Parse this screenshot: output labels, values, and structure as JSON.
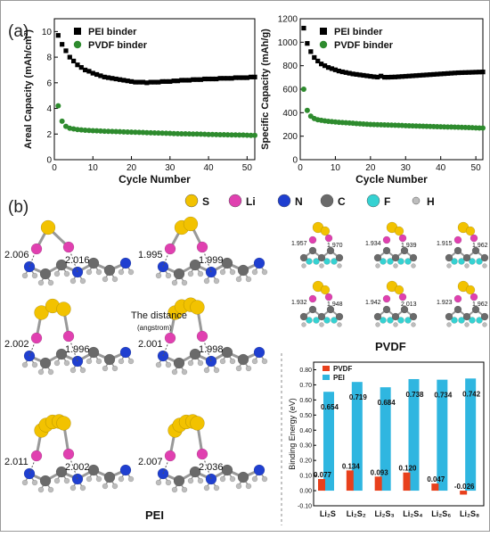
{
  "panel_labels": {
    "a": "(a)",
    "b": "(b)"
  },
  "chart_data": [
    {
      "type": "scatter",
      "title": "",
      "xlabel": "Cycle Number",
      "ylabel": "Areal Capacity (mAh/cm²)",
      "xlim": [
        0,
        52
      ],
      "ylim": [
        0,
        11
      ],
      "xticks": [
        "0",
        "10",
        "20",
        "30",
        "40",
        "50"
      ],
      "yticks": [
        "0",
        "2",
        "4",
        "6",
        "8",
        "10"
      ],
      "legend_position": "top-right",
      "series": [
        {
          "name": "PEI binder",
          "color": "#000000",
          "marker": "square",
          "x": [
            1,
            2,
            3,
            4,
            5,
            6,
            7,
            8,
            9,
            10,
            11,
            12,
            13,
            14,
            15,
            16,
            17,
            18,
            19,
            20,
            21,
            22,
            23,
            24,
            25,
            26,
            27,
            28,
            29,
            30,
            31,
            32,
            33,
            34,
            35,
            36,
            37,
            38,
            39,
            40,
            41,
            42,
            43,
            44,
            45,
            46,
            47,
            48,
            49,
            50,
            51,
            52
          ],
          "y": [
            9.7,
            9.0,
            8.5,
            8.0,
            7.7,
            7.4,
            7.2,
            7.0,
            6.9,
            6.75,
            6.65,
            6.55,
            6.45,
            6.4,
            6.35,
            6.3,
            6.25,
            6.2,
            6.15,
            6.1,
            6.05,
            6.05,
            6.05,
            6.0,
            6.05,
            6.05,
            6.05,
            6.1,
            6.1,
            6.1,
            6.15,
            6.15,
            6.2,
            6.2,
            6.2,
            6.25,
            6.25,
            6.25,
            6.3,
            6.3,
            6.3,
            6.3,
            6.35,
            6.35,
            6.35,
            6.35,
            6.4,
            6.4,
            6.4,
            6.4,
            6.45,
            6.45
          ]
        },
        {
          "name": "PVDF binder",
          "color": "#2e8b2e",
          "marker": "circle",
          "x": [
            1,
            2,
            3,
            4,
            5,
            6,
            7,
            8,
            9,
            10,
            11,
            12,
            13,
            14,
            15,
            16,
            17,
            18,
            19,
            20,
            21,
            22,
            23,
            24,
            25,
            26,
            27,
            28,
            29,
            30,
            31,
            32,
            33,
            34,
            35,
            36,
            37,
            38,
            39,
            40,
            41,
            42,
            43,
            44,
            45,
            46,
            47,
            48,
            49,
            50,
            51,
            52
          ],
          "y": [
            4.2,
            3.0,
            2.6,
            2.45,
            2.4,
            2.35,
            2.32,
            2.3,
            2.28,
            2.26,
            2.25,
            2.24,
            2.22,
            2.21,
            2.2,
            2.19,
            2.18,
            2.17,
            2.16,
            2.15,
            2.14,
            2.13,
            2.12,
            2.11,
            2.1,
            2.09,
            2.08,
            2.07,
            2.06,
            2.05,
            2.04,
            2.03,
            2.02,
            2.02,
            2.01,
            2.0,
            2.0,
            1.99,
            1.98,
            1.97,
            1.97,
            1.96,
            1.95,
            1.95,
            1.94,
            1.93,
            1.93,
            1.92,
            1.92,
            1.91,
            1.9,
            1.9
          ]
        }
      ]
    },
    {
      "type": "scatter",
      "title": "",
      "xlabel": "Cycle Number",
      "ylabel": "Specific Capacity (mAh/g)",
      "xlim": [
        0,
        52
      ],
      "ylim": [
        0,
        1200
      ],
      "xticks": [
        "0",
        "10",
        "20",
        "30",
        "40",
        "50"
      ],
      "yticks": [
        "0",
        "200",
        "400",
        "600",
        "800",
        "1000",
        "1200"
      ],
      "legend_position": "top-right",
      "series": [
        {
          "name": "PEI binder",
          "color": "#000000",
          "marker": "square",
          "x": [
            1,
            2,
            3,
            4,
            5,
            6,
            7,
            8,
            9,
            10,
            11,
            12,
            13,
            14,
            15,
            16,
            17,
            18,
            19,
            20,
            21,
            22,
            23,
            24,
            25,
            26,
            27,
            28,
            29,
            30,
            31,
            32,
            33,
            34,
            35,
            36,
            37,
            38,
            39,
            40,
            41,
            42,
            43,
            44,
            45,
            46,
            47,
            48,
            49,
            50,
            51,
            52
          ],
          "y": [
            1120,
            990,
            920,
            870,
            840,
            815,
            800,
            785,
            775,
            765,
            755,
            748,
            742,
            736,
            730,
            726,
            722,
            718,
            714,
            710,
            706,
            703,
            712,
            702,
            702,
            703,
            704,
            706,
            708,
            710,
            712,
            714,
            716,
            718,
            720,
            722,
            724,
            726,
            728,
            730,
            732,
            734,
            736,
            738,
            740,
            741,
            742,
            743,
            744,
            745,
            746,
            747
          ]
        },
        {
          "name": "PVDF binder",
          "color": "#2e8b2e",
          "marker": "circle",
          "x": [
            1,
            2,
            3,
            4,
            5,
            6,
            7,
            8,
            9,
            10,
            11,
            12,
            13,
            14,
            15,
            16,
            17,
            18,
            19,
            20,
            21,
            22,
            23,
            24,
            25,
            26,
            27,
            28,
            29,
            30,
            31,
            32,
            33,
            34,
            35,
            36,
            37,
            38,
            39,
            40,
            41,
            42,
            43,
            44,
            45,
            46,
            47,
            48,
            49,
            50,
            51,
            52
          ],
          "y": [
            600,
            420,
            370,
            350,
            340,
            335,
            330,
            327,
            324,
            321,
            318,
            316,
            314,
            312,
            310,
            308,
            306,
            304,
            302,
            300,
            299,
            298,
            297,
            296,
            295,
            294,
            293,
            292,
            291,
            290,
            289,
            288,
            287,
            286,
            285,
            284,
            283,
            282,
            281,
            280,
            279,
            278,
            278,
            277,
            276,
            275,
            274,
            273,
            272,
            271,
            270,
            270
          ]
        }
      ]
    },
    {
      "type": "bar",
      "title": "",
      "xlabel": "",
      "ylabel": "Binding Energy (eV)",
      "ylim": [
        -0.1,
        0.85
      ],
      "yticks": [
        "-0.10",
        "0.00",
        "0.10",
        "0.20",
        "0.30",
        "0.40",
        "0.50",
        "0.60",
        "0.70",
        "0.80"
      ],
      "categories": [
        "Li₂S",
        "Li₂S₂",
        "Li₂S₃",
        "Li₂S₄",
        "Li₂S₆",
        "Li₂S₈"
      ],
      "legend_position": "top-left",
      "series": [
        {
          "name": "PVDF",
          "color": "#e8401c",
          "values": [
            0.077,
            0.134,
            0.093,
            0.12,
            0.047,
            -0.026
          ],
          "labels": [
            "0.077",
            "0.134",
            "0.093",
            "0.120",
            "0.047",
            "-0.026"
          ]
        },
        {
          "name": "PEI",
          "color": "#2fb6e0",
          "values": [
            0.654,
            0.719,
            0.684,
            0.738,
            0.734,
            0.742
          ],
          "labels": [
            "0.654",
            "0.719",
            "0.684",
            "0.738",
            "0.734",
            "0.742"
          ]
        }
      ]
    }
  ],
  "atom_legend": [
    {
      "symbol": "S",
      "color": "#f2c200"
    },
    {
      "symbol": "Li",
      "color": "#e040b0"
    },
    {
      "symbol": "N",
      "color": "#1f3fd0"
    },
    {
      "symbol": "C",
      "color": "#6a6a6a"
    },
    {
      "symbol": "F",
      "color": "#35d2d2"
    },
    {
      "symbol": "H",
      "color": "#bdbdbd"
    }
  ],
  "pei_distances": [
    [
      "2.006",
      "2.016"
    ],
    [
      "1.995",
      "1.999"
    ],
    [
      "2.002",
      "1.996"
    ],
    [
      "2.001",
      "1.998"
    ],
    [
      "2.011",
      "2.002"
    ],
    [
      "2.007",
      "2.036"
    ]
  ],
  "pvdf_distances": [
    [
      "1.957",
      "1.970"
    ],
    [
      "1.934",
      "1.939"
    ],
    [
      "1.915",
      "1.962"
    ],
    [
      "1.932",
      "1.948"
    ],
    [
      "1.942",
      "2.013"
    ],
    [
      "1.923",
      "1.962"
    ]
  ],
  "annotation": {
    "line1": "The  distance",
    "line2": "(angstrom)"
  },
  "group_labels": {
    "pei": "PEI",
    "pvdf": "PVDF"
  }
}
